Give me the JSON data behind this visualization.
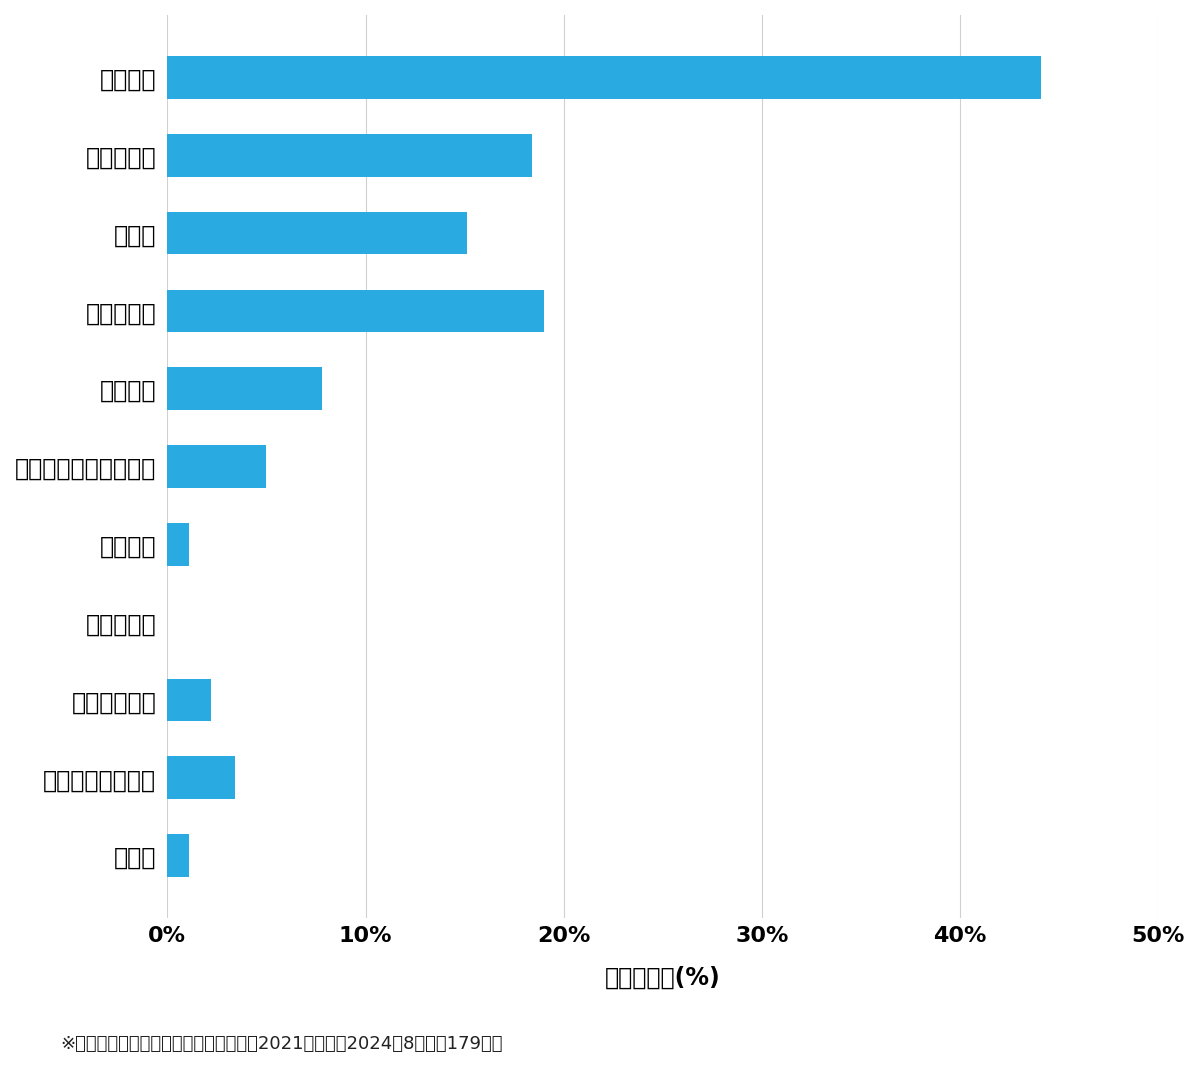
{
  "categories": [
    "玄関開錠",
    "玄関鍵交換",
    "車開錠",
    "その他開錠",
    "車鍵作成",
    "イモビ付国産車鍵作成",
    "金庫開錠",
    "玄関鍵作成",
    "その他鍵作成",
    "スーツケース開錠",
    "その他"
  ],
  "values": [
    44.1,
    18.4,
    15.1,
    19.0,
    7.8,
    5.0,
    1.1,
    0.0,
    2.2,
    3.4,
    1.1
  ],
  "bar_color": "#29ABE2",
  "background_color": "#ffffff",
  "xlabel": "件数の割合(%)",
  "xlim": [
    0,
    50
  ],
  "xticks": [
    0,
    10,
    20,
    30,
    40,
    50
  ],
  "xtick_labels": [
    "0%",
    "10%",
    "20%",
    "30%",
    "40%",
    "50%"
  ],
  "footnote": "※弊社受付の案件を対象に集計（期間：2021年１月～2024年8月、計179件）",
  "label_fontsize": 17,
  "tick_fontsize": 16,
  "xlabel_fontsize": 17,
  "footnote_fontsize": 13,
  "bar_height": 0.55
}
